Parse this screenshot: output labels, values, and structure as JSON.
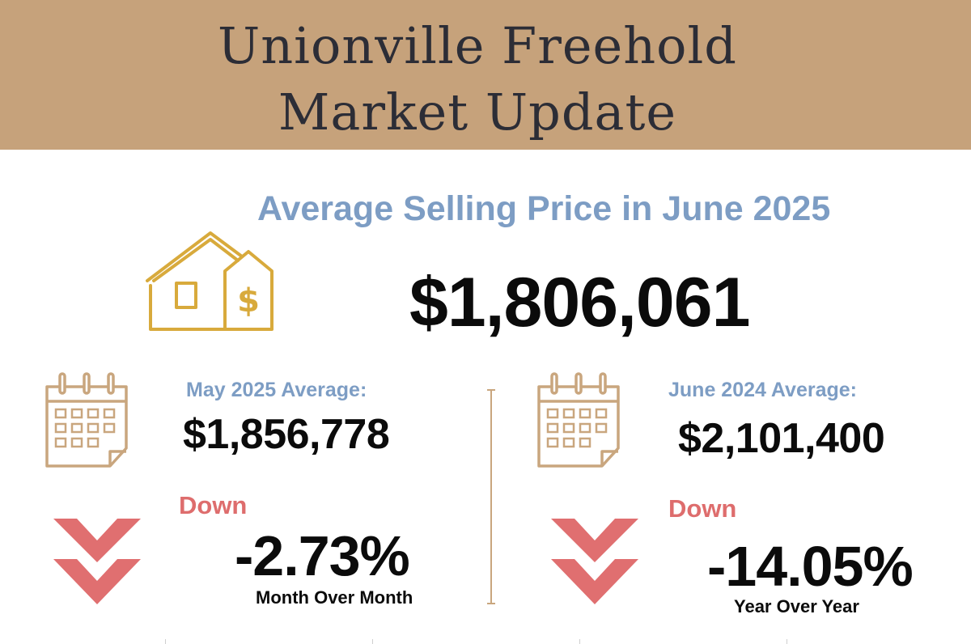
{
  "header": {
    "title_line1": "Unionville Freehold",
    "title_line2": "Market Update"
  },
  "headline": {
    "label": "Average Selling Price in June 2025",
    "price": "$1,806,061",
    "icon": "house-dollar-icon"
  },
  "month_over_month": {
    "label": "May 2025 Average:",
    "value": "$1,856,778",
    "direction": "Down",
    "change": "-2.73%",
    "period": "Month Over Month",
    "icon": "calendar-icon",
    "arrow_icon": "double-chevron-down-icon"
  },
  "year_over_year": {
    "label": "June 2024 Average:",
    "value": "$2,101,400",
    "direction": "Down",
    "change": "-14.05%",
    "period": "Year Over Year",
    "icon": "calendar-icon",
    "arrow_icon": "double-chevron-down-icon"
  },
  "colors": {
    "header_bg": "#c6a27b",
    "title_text": "#2c2d36",
    "label_blue": "#7d9dc4",
    "down_red": "#de6d6d",
    "icon_gold": "#d8aa3c",
    "icon_tan": "#c9a67e"
  }
}
